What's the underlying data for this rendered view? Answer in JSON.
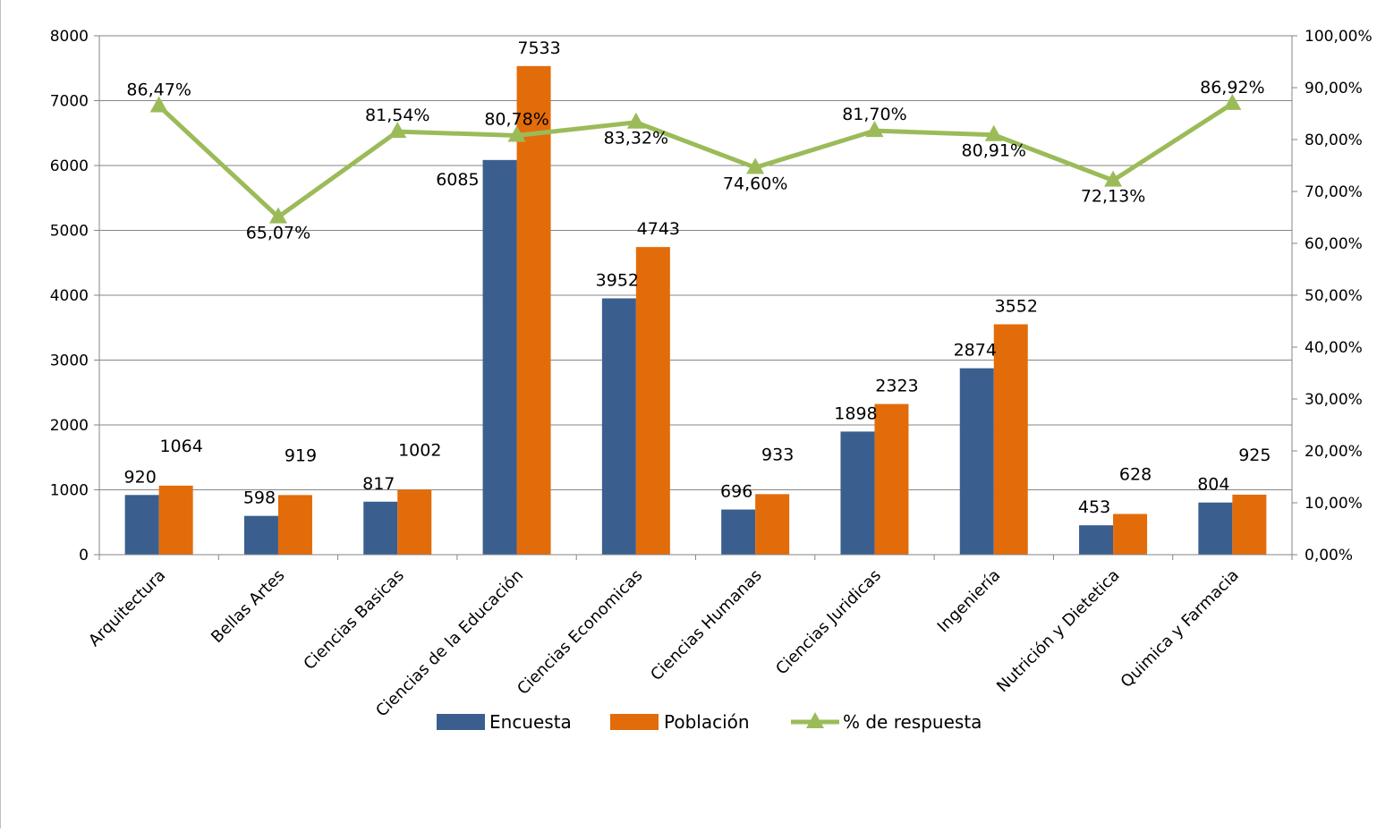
{
  "chart_data": {
    "type": "bar",
    "categories": [
      "Arquitectura",
      "Bellas Artes",
      "Ciencias Basicas",
      "Ciencias de la Educación",
      "Ciencias Economicas",
      "Ciencias Humanas",
      "Ciencias Juridicas",
      "Ingeniería",
      "Nutrición y Dietetica",
      "Quimica y Farmacia"
    ],
    "series": [
      {
        "name": "Encuesta",
        "kind": "bar",
        "axis": "left",
        "color": "#3A5F8F",
        "values": [
          920,
          598,
          817,
          6085,
          3952,
          696,
          1898,
          2874,
          453,
          804
        ],
        "labels": [
          "920",
          "598",
          "817",
          "6085",
          "3952",
          "696",
          "1898",
          "2874",
          "453",
          "804"
        ]
      },
      {
        "name": "Población",
        "kind": "bar",
        "axis": "left",
        "color": "#E36C0A",
        "values": [
          1064,
          919,
          1002,
          7533,
          4743,
          933,
          2323,
          3552,
          628,
          925
        ],
        "labels": [
          "1064",
          "919",
          "1002",
          "7533",
          "4743",
          "933",
          "2323",
          "3552",
          "628",
          "925"
        ]
      },
      {
        "name": "% de respuesta",
        "kind": "line",
        "axis": "right",
        "color": "#9BBB59",
        "values": [
          86.47,
          65.07,
          81.54,
          80.78,
          83.32,
          74.6,
          81.7,
          80.91,
          72.13,
          86.92
        ],
        "labels": [
          "86,47%",
          "65,07%",
          "81,54%",
          "80,78%",
          "83,32%",
          "74,60%",
          "81,70%",
          "80,91%",
          "72,13%",
          "86,92%"
        ]
      }
    ],
    "y_left": {
      "range": [
        0,
        8000
      ],
      "ticks": [
        "0",
        "1000",
        "2000",
        "3000",
        "4000",
        "5000",
        "6000",
        "7000",
        "8000"
      ],
      "tick_values": [
        0,
        1000,
        2000,
        3000,
        4000,
        5000,
        6000,
        7000,
        8000
      ]
    },
    "y_right": {
      "range": [
        0,
        100
      ],
      "ticks": [
        "0,00%",
        "10,00%",
        "20,00%",
        "30,00%",
        "40,00%",
        "50,00%",
        "60,00%",
        "70,00%",
        "80,00%",
        "90,00%",
        "100,00%"
      ],
      "tick_values": [
        0,
        10,
        20,
        30,
        40,
        50,
        60,
        70,
        80,
        90,
        100
      ]
    },
    "grid": true,
    "legend": "bottom"
  }
}
